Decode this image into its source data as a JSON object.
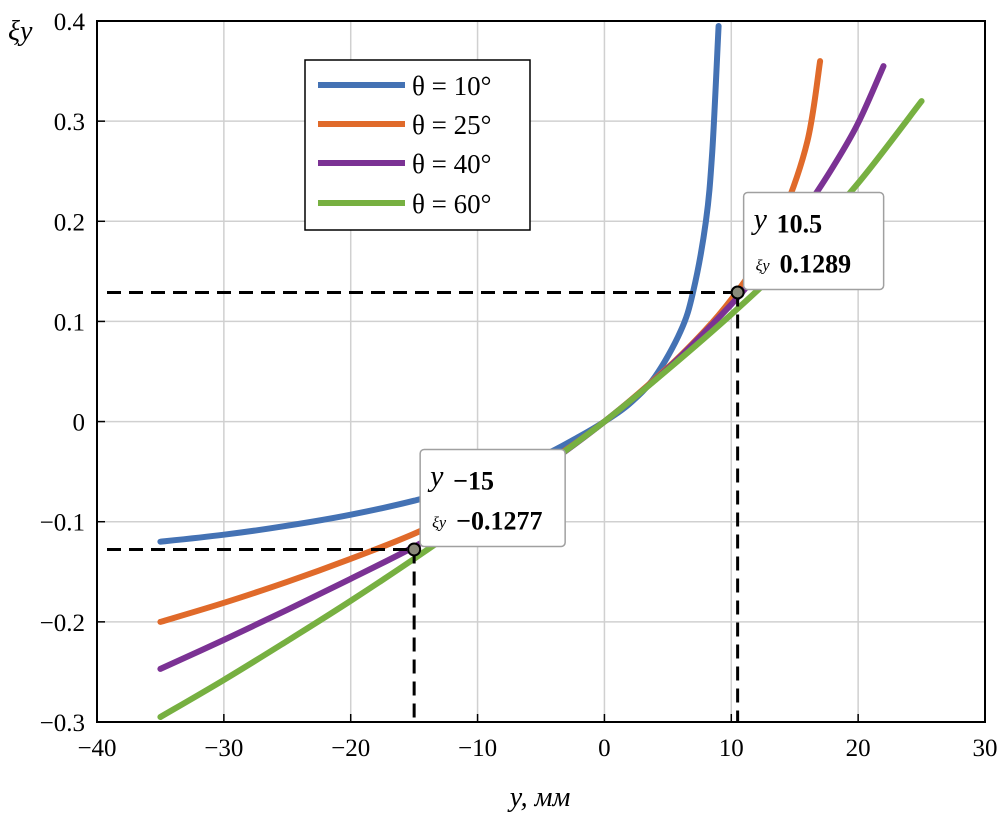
{
  "chart_data": {
    "type": "line",
    "xlabel": "y, мм",
    "ylabel": "ξy",
    "xlim": [
      -40,
      30
    ],
    "ylim": [
      -0.3,
      0.4
    ],
    "xticks": [
      -40,
      -30,
      -20,
      -10,
      0,
      10,
      20,
      30
    ],
    "xtick_labels": [
      "−40",
      "−30",
      "−20",
      "−10",
      "0",
      "10",
      "20",
      "30"
    ],
    "yticks": [
      -0.3,
      -0.2,
      -0.1,
      0,
      0.1,
      0.2,
      0.3,
      0.4
    ],
    "ytick_labels": [
      "−0.3",
      "−0.2",
      "−0.1",
      "0",
      "0.1",
      "0.2",
      "0.3",
      "0.4"
    ],
    "grid": true,
    "legend_position": "top-left",
    "series": [
      {
        "name": "θ = 10°",
        "color": "#4472b4",
        "x": [
          -35,
          -30,
          -25,
          -20,
          -15,
          -10,
          -5,
          -2,
          0,
          2,
          4,
          6,
          7,
          8,
          8.5,
          9
        ],
        "y": [
          -0.12,
          -0.113,
          -0.104,
          -0.093,
          -0.079,
          -0.061,
          -0.035,
          -0.015,
          0,
          0.018,
          0.045,
          0.09,
          0.13,
          0.2,
          0.27,
          0.395
        ]
      },
      {
        "name": "θ = 25°",
        "color": "#e06a2a",
        "x": [
          -35,
          -30,
          -25,
          -20,
          -15,
          -10,
          -5,
          0,
          5,
          8,
          10,
          12,
          14,
          16,
          17
        ],
        "y": [
          -0.2,
          -0.181,
          -0.16,
          -0.137,
          -0.112,
          -0.082,
          -0.045,
          0,
          0.054,
          0.092,
          0.122,
          0.158,
          0.205,
          0.28,
          0.36
        ]
      },
      {
        "name": "θ = 40°",
        "color": "#7b3294",
        "x": [
          -35,
          -30,
          -25,
          -20,
          -15,
          -10,
          -5,
          0,
          5,
          10,
          12,
          14,
          16,
          18,
          20,
          22
        ],
        "y": [
          -0.247,
          -0.218,
          -0.188,
          -0.157,
          -0.125,
          -0.089,
          -0.047,
          0,
          0.053,
          0.117,
          0.147,
          0.179,
          0.215,
          0.254,
          0.298,
          0.355
        ]
      },
      {
        "name": "θ = 60°",
        "color": "#77b041",
        "x": [
          -35,
          -30,
          -25,
          -20,
          -15,
          -10,
          -5,
          0,
          5,
          10,
          15,
          20,
          25
        ],
        "y": [
          -0.295,
          -0.258,
          -0.219,
          -0.179,
          -0.137,
          -0.093,
          -0.047,
          0,
          0.052,
          0.107,
          0.167,
          0.238,
          0.32
        ]
      }
    ],
    "annotations": [
      {
        "x": 10.5,
        "y": 0.1289,
        "var": "y",
        "x_text": "10.5",
        "sub_label": "ξy",
        "y_text": "0.1289"
      },
      {
        "x": -15,
        "y": -0.1277,
        "var": "y",
        "x_text": "−15",
        "sub_label": "ξy",
        "y_text": "−0.1277"
      }
    ]
  }
}
